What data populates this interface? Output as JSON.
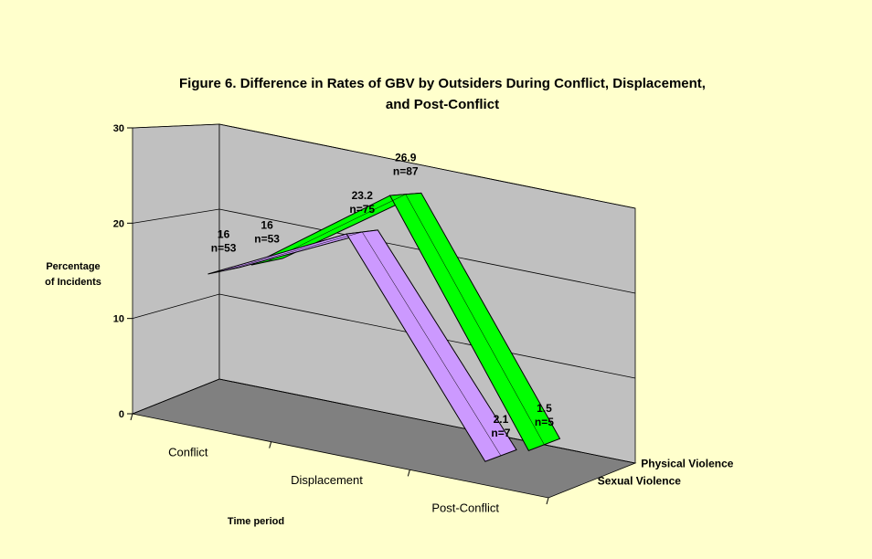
{
  "chart_data": {
    "type": "line3d",
    "title": [
      "Figure 6. Difference in Rates of GBV by Outsiders During Conflict, Displacement,",
      "and Post-Conflict"
    ],
    "y_label": [
      "Percentage",
      "of Incidents"
    ],
    "x_label": "Time period",
    "categories": [
      "Conflict",
      "Displacement",
      "Post-Conflict"
    ],
    "series": [
      {
        "name": "Physical Violence",
        "color": "#00ff00",
        "values": [
          16,
          26.9,
          1.5
        ],
        "counts": [
          "n=53",
          "n=87",
          "n=5"
        ]
      },
      {
        "name": "Sexual Violence",
        "color": "#cc99ff",
        "values": [
          16,
          23.2,
          2.1
        ],
        "counts": [
          "n=53",
          "n=75",
          "n=7"
        ]
      }
    ],
    "ylim": [
      0,
      30
    ],
    "yticks": [
      0,
      10,
      20,
      30
    ],
    "grid": true
  }
}
